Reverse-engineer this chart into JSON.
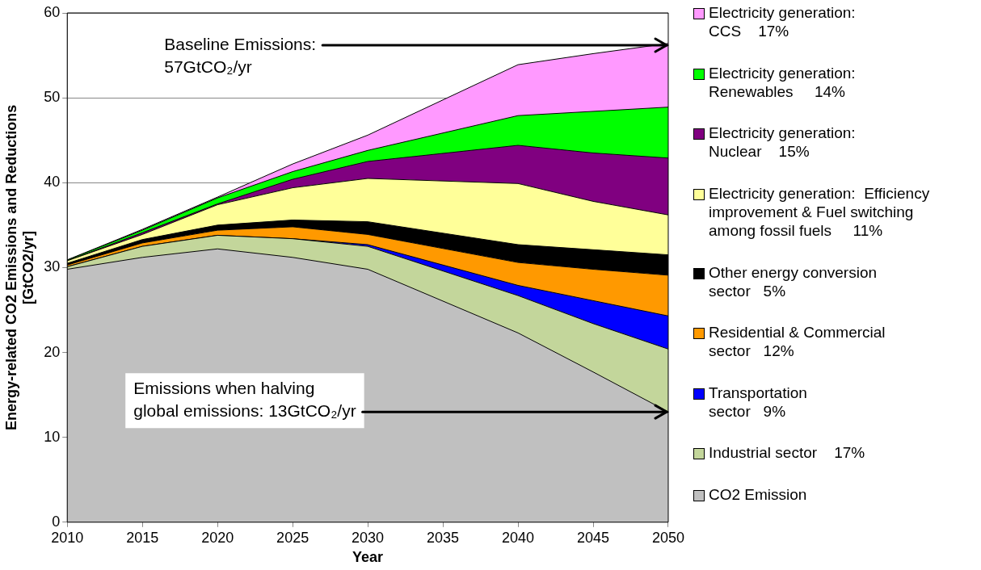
{
  "chart_data": {
    "type": "area",
    "stacked": true,
    "xlabel": "Year",
    "ylabel": "Energy-related CO2 Emissions and Reductions\n[GtCO2/yr]",
    "x": [
      2010,
      2015,
      2020,
      2025,
      2030,
      2040,
      2045,
      2050
    ],
    "xlim": [
      2010,
      2050
    ],
    "xticks": [
      2010,
      2015,
      2020,
      2025,
      2030,
      2035,
      2040,
      2045,
      2050
    ],
    "ylim": [
      0,
      60
    ],
    "yticks": [
      0,
      10,
      20,
      30,
      40,
      50,
      60
    ],
    "grid": "y",
    "legend": "right",
    "series": [
      {
        "name": "CO2 Emission",
        "color": "#c0c0c0",
        "values": [
          29.8,
          31.2,
          32.2,
          31.2,
          29.8,
          22.3,
          17.7,
          13.0
        ]
      },
      {
        "name": "Industrial sector    17%",
        "color": "#c3d69b",
        "values": [
          0.3,
          1.3,
          1.6,
          2.2,
          2.7,
          4.4,
          5.7,
          7.4
        ]
      },
      {
        "name": "Transportation\nsector   9%",
        "color": "#0000ff",
        "values": [
          0,
          0,
          0,
          0,
          0.2,
          1.2,
          2.7,
          3.9
        ]
      },
      {
        "name": "Residential & Commercial\nsector   12%",
        "color": "#ff9900",
        "values": [
          0.2,
          0.4,
          0.6,
          1.4,
          1.2,
          2.7,
          3.7,
          4.8
        ]
      },
      {
        "name": "Other energy conversion\nsector   5%",
        "color": "#000000",
        "values": [
          0.2,
          0.4,
          0.6,
          0.8,
          1.5,
          2.1,
          2.3,
          2.4
        ]
      },
      {
        "name": "Electricity generation:  Efficiency\nimprovement & Fuel switching\namong fossil fuels     11%",
        "color": "#ffff99",
        "values": [
          0.3,
          0.6,
          2.4,
          3.8,
          5.1,
          7.2,
          5.7,
          4.7
        ]
      },
      {
        "name": "Electricity generation:\nNuclear    15%",
        "color": "#800080",
        "values": [
          0,
          0.2,
          0.1,
          1.0,
          2.0,
          4.5,
          5.7,
          6.7
        ]
      },
      {
        "name": "Electricity generation:\nRenewables     14%",
        "color": "#00ff00",
        "values": [
          0.1,
          0.3,
          0.7,
          0.9,
          1.3,
          3.5,
          4.9,
          6.0
        ]
      },
      {
        "name": "Electricity generation:\nCCS    17%",
        "color": "#ff99ff",
        "values": [
          0,
          0.1,
          0.1,
          0.9,
          1.8,
          6.0,
          6.8,
          7.5
        ]
      }
    ],
    "annotations": [
      "Baseline Emissions:\n57GtCO₂/yr",
      {
        "text": "Emissions when halving\nglobal emissions: 13GtCO₂/yr",
        "x": 2050,
        "y": 13
      }
    ]
  }
}
